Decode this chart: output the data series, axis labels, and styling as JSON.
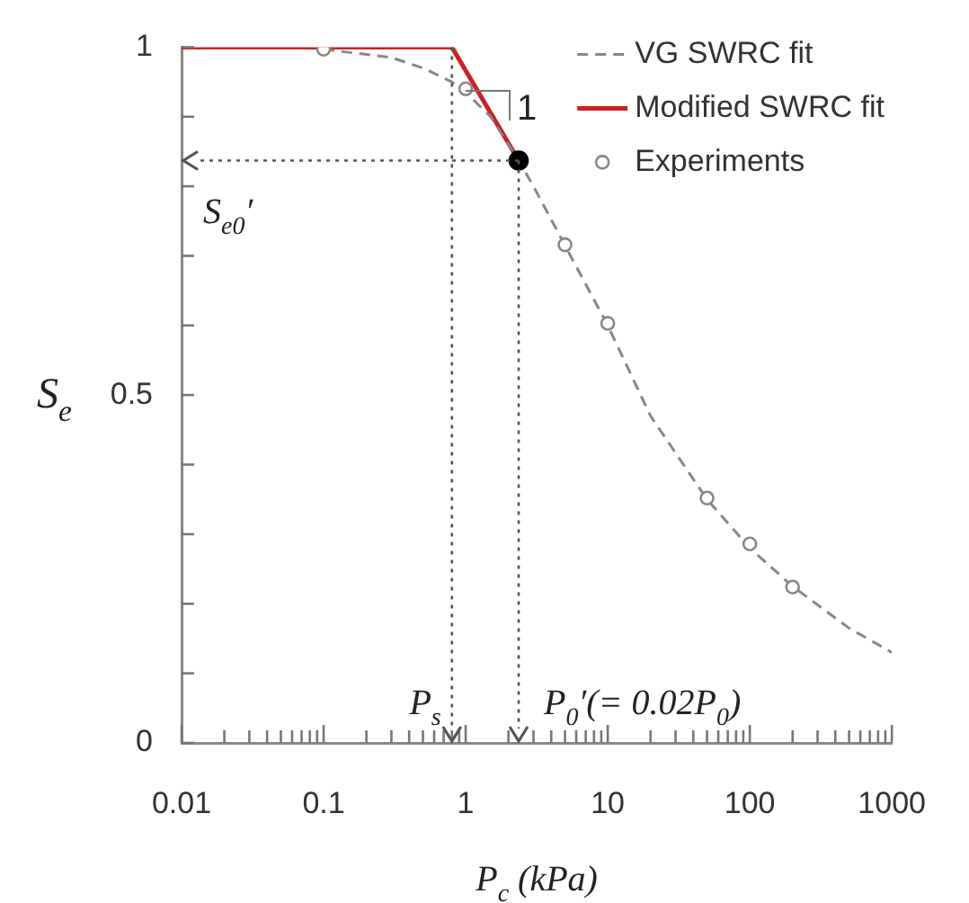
{
  "chart_data": {
    "type": "line",
    "xlabel": "P$_{c}$ (kPa)",
    "ylabel": "S$_{e}$",
    "log": "x",
    "xlim": [
      0.01,
      1000
    ],
    "ylim": [
      0,
      1
    ],
    "xticks": [
      0.01,
      {
        "value": 0.02,
        "label": null
      },
      {
        "value": 0.03,
        "label": null
      },
      {
        "value": 0.04,
        "label": null
      },
      {
        "value": 0.05,
        "label": null
      },
      {
        "value": 0.06,
        "label": null
      },
      {
        "value": 0.07,
        "label": null
      },
      {
        "value": 0.08,
        "label": null
      },
      {
        "value": 0.09,
        "label": null
      },
      0.1,
      {
        "value": 0.2,
        "label": null
      },
      {
        "value": 0.3,
        "label": null
      },
      {
        "value": 0.4,
        "label": null
      },
      {
        "value": 0.5,
        "label": null
      },
      {
        "value": 0.6,
        "label": null
      },
      {
        "value": 0.7,
        "label": null
      },
      {
        "value": 0.8,
        "label": null
      },
      {
        "value": 0.9,
        "label": null
      },
      1,
      {
        "value": 2,
        "label": null
      },
      {
        "value": 3,
        "label": null
      },
      {
        "value": 4,
        "label": null
      },
      {
        "value": 5,
        "label": null
      },
      {
        "value": 6,
        "label": null
      },
      {
        "value": 7,
        "label": null
      },
      {
        "value": 8,
        "label": null
      },
      {
        "value": 9,
        "label": null
      },
      10,
      {
        "value": 20,
        "label": null
      },
      {
        "value": 30,
        "label": null
      },
      {
        "value": 40,
        "label": null
      },
      {
        "value": 50,
        "label": null
      },
      {
        "value": 60,
        "label": null
      },
      {
        "value": 70,
        "label": null
      },
      {
        "value": 80,
        "label": null
      },
      {
        "value": 90,
        "label": null
      },
      100,
      {
        "value": 200,
        "label": null
      },
      {
        "value": 300,
        "label": null
      },
      {
        "value": 400,
        "label": null
      },
      {
        "value": 500,
        "label": null
      },
      {
        "value": 600,
        "label": null
      },
      {
        "value": 700,
        "label": null
      },
      {
        "value": 800,
        "label": null
      },
      {
        "value": 900,
        "label": null
      },
      1000
    ],
    "yticks": [
      0,
      {
        "value": 0.1,
        "label": null
      },
      {
        "value": 0.2,
        "label": null
      },
      {
        "value": 0.3,
        "label": null
      },
      {
        "value": 0.4,
        "label": null
      },
      0.5,
      {
        "value": 0.6,
        "label": null
      },
      {
        "value": 0.7,
        "label": null
      },
      {
        "value": 0.8,
        "label": null
      },
      {
        "value": 0.9,
        "label": null
      },
      1
    ],
    "grid": false,
    "legend": "top right",
    "series": [
      {
        "name": "VG SWRC fit",
        "line_style": "dashed",
        "marker": "none",
        "color": "#888888",
        "x": [
          0.1,
          0.3,
          0.5,
          0.8,
          1,
          1.5,
          2.36,
          3,
          5,
          10,
          20,
          50,
          100,
          200,
          500,
          1000
        ],
        "values": [
          0.997,
          0.985,
          0.97,
          0.95,
          0.935,
          0.9,
          0.837,
          0.8,
          0.715,
          0.6,
          0.47,
          0.35,
          0.28,
          0.225,
          0.165,
          0.13
        ]
      },
      {
        "name": "Modified SWRC fit",
        "line_style": "solid",
        "marker": "none",
        "color": "#cc2222",
        "x": [
          0.01,
          0.8,
          2.36
        ],
        "values": [
          1,
          1,
          0.837
        ]
      },
      {
        "type": "scatter",
        "marker": "circle",
        "color": "#000000",
        "x": [
          2.36
        ],
        "values": [
          0.837
        ]
      },
      {
        "name": "Experiments",
        "type": "scatter",
        "marker": "circle",
        "color": "#888888",
        "x": [
          0.1,
          1,
          5,
          10,
          50,
          100,
          200
        ],
        "values": [
          0.997,
          0.94,
          0.716,
          0.603,
          0.352,
          0.286,
          0.224
        ]
      }
    ],
    "ref_lines": [
      {
        "axis": "y",
        "value": 0.837,
        "label": "S$_{e0}$′",
        "line_style": "dotted"
      },
      {
        "axis": "x",
        "value": 0.8,
        "label": "P$_{s}$",
        "line_style": "dotted"
      },
      {
        "axis": "x",
        "value": 2.36,
        "line_style": "dotted"
      }
    ],
    "annotations": [
      "1",
      "P$_{0}$′(= 0.02P$_{0}$)"
    ]
  }
}
